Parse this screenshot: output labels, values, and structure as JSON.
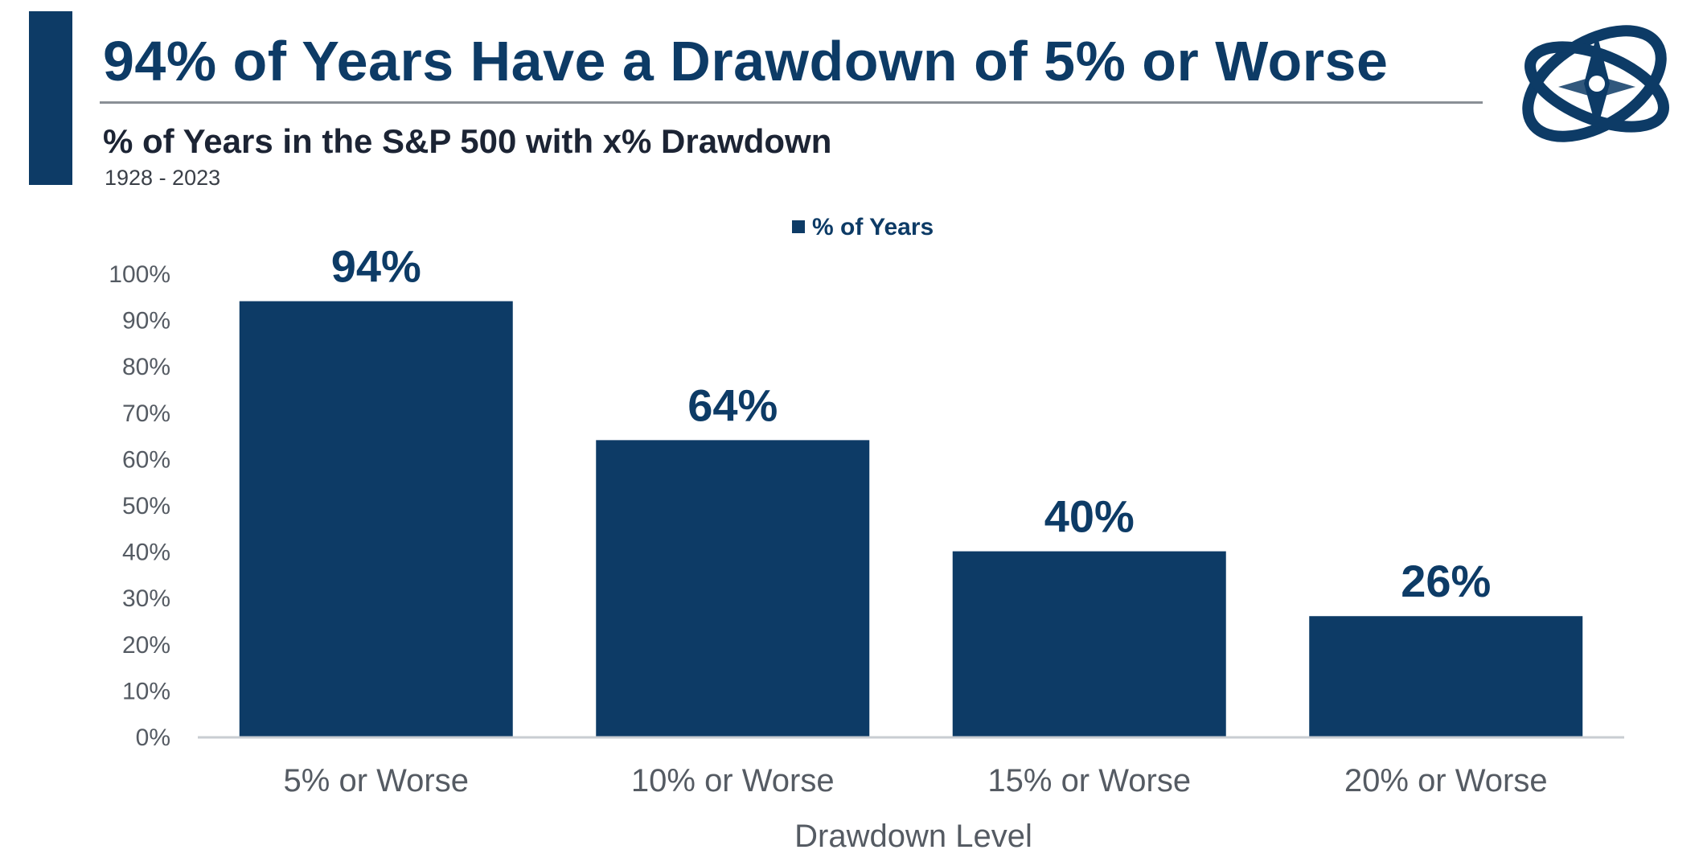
{
  "header": {
    "title": "94% of Years Have a Drawdown of 5% or Worse",
    "subtitle": "% of Years in the S&P 500 with x% Drawdown",
    "period": "1928 - 2023",
    "logo_icon": "compass-globe-logo-icon"
  },
  "colors": {
    "brand": "#0d3b66",
    "axis_text": "#555b63",
    "baseline": "#c9cdd2"
  },
  "chart_data": {
    "type": "bar",
    "categories": [
      "5% or Worse",
      "10% or Worse",
      "15% or Worse",
      "20% or Worse"
    ],
    "series": [
      {
        "name": "% of Years",
        "values": [
          94,
          64,
          40,
          26
        ]
      }
    ],
    "data_labels": [
      "94%",
      "64%",
      "40%",
      "26%"
    ],
    "xlabel": "Drawdown Level",
    "ylabel": "",
    "ylim": [
      0,
      100
    ],
    "yticks": [
      "0%",
      "10%",
      "20%",
      "30%",
      "40%",
      "50%",
      "60%",
      "70%",
      "80%",
      "90%",
      "100%"
    ],
    "grid": false,
    "legend_position": "top-center"
  }
}
